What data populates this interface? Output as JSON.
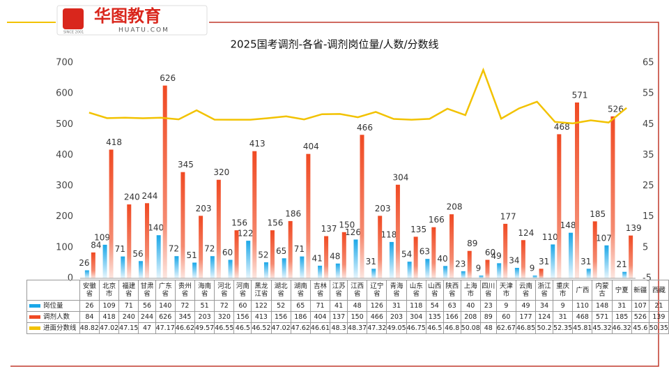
{
  "logo": {
    "name": "华图教育",
    "site": "HUATU.COM",
    "since": "SINCE 2001"
  },
  "chart_data": {
    "type": "bar",
    "title": "2025国考调剂-各省-调剂岗位量/人数/分数线",
    "categories": [
      "安徽\n省",
      "北京\n市",
      "福建\n省",
      "甘肃\n省",
      "广东\n省",
      "贵州\n省",
      "海南\n省",
      "河北\n省",
      "河南\n省",
      "黑龙\n江省",
      "湖北\n省",
      "湖南\n省",
      "吉林\n省",
      "江苏\n省",
      "江西\n省",
      "辽宁\n省",
      "青海\n省",
      "山东\n省",
      "山西\n省",
      "陕西\n省",
      "上海\n市",
      "四川\n省",
      "天津\n市",
      "云南\n省",
      "浙江\n省",
      "重庆\n市",
      "广西",
      "内蒙\n古",
      "宁夏",
      "新疆",
      "西藏"
    ],
    "series": [
      {
        "name": "岗位量",
        "color": "#1aa7e8",
        "values": [
          26,
          109,
          71,
          56,
          140,
          72,
          51,
          72,
          60,
          122,
          52,
          65,
          71,
          41,
          48,
          126,
          31,
          118,
          54,
          63,
          40,
          23,
          9,
          49,
          34,
          9,
          110,
          148,
          31,
          107,
          21
        ]
      },
      {
        "name": "调剂人数",
        "color": "#f04a23",
        "values": [
          84,
          418,
          240,
          244,
          626,
          345,
          203,
          320,
          156,
          413,
          156,
          186,
          404,
          137,
          150,
          466,
          203,
          304,
          135,
          166,
          208,
          89,
          60,
          177,
          124,
          31,
          468,
          571,
          185,
          526,
          139
        ]
      },
      {
        "name": "进面分数线",
        "color": "#f2c200",
        "type": "line",
        "axis": "y2",
        "values": [
          48.82,
          47.02,
          47.15,
          47,
          47.17,
          46.62,
          49.57,
          46.55,
          46.5,
          46.52,
          47.02,
          47.62,
          46.61,
          48.3,
          48.37,
          47.32,
          49.05,
          46.75,
          46.5,
          46.8,
          50.08,
          48,
          62.67,
          46.85,
          50.2,
          52.35,
          45.81,
          45.32,
          46.32,
          45.6,
          50.35
        ]
      }
    ],
    "ylim": [
      0,
      700
    ],
    "yticks": [
      0,
      100,
      200,
      300,
      400,
      500,
      600,
      700
    ],
    "y2lim": [
      -5,
      65
    ],
    "y2ticks": [
      -5,
      5,
      15,
      25,
      35,
      45,
      55,
      65
    ],
    "grid": false
  }
}
